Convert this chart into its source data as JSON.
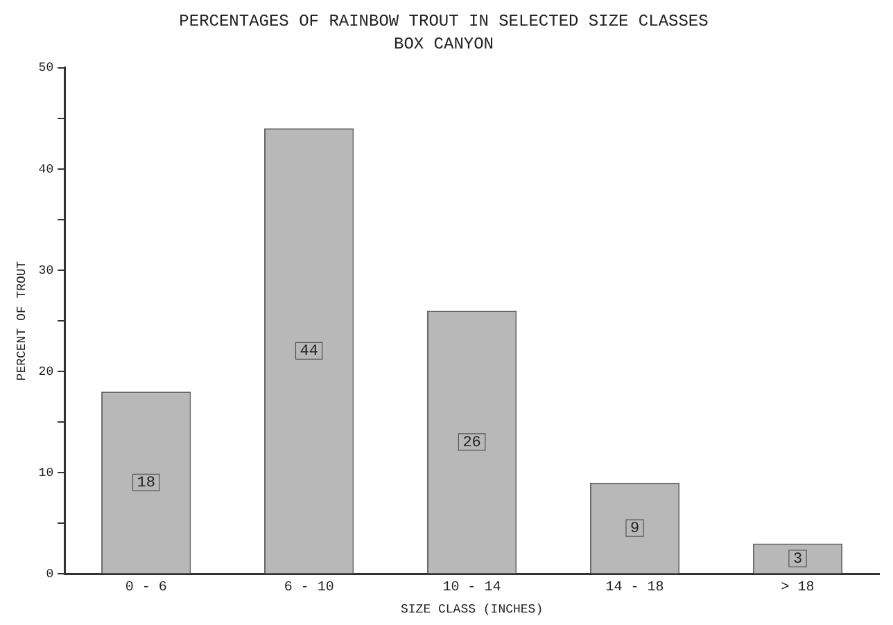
{
  "chart_data": {
    "type": "bar",
    "title": "PERCENTAGES OF RAINBOW TROUT IN SELECTED SIZE CLASSES",
    "subtitle": "BOX CANYON",
    "xlabel": "SIZE CLASS (INCHES)",
    "ylabel": "PERCENT OF TROUT",
    "categories": [
      "0 - 6",
      "6 - 10",
      "10 - 14",
      "14 - 18",
      "> 18"
    ],
    "values": [
      18,
      44,
      26,
      9,
      3
    ],
    "color": "#b8b8b8",
    "data_labels": true,
    "ylim": [
      0,
      50
    ],
    "yticks": [
      0,
      {
        "value": 5,
        "label": null
      },
      10,
      {
        "value": 15,
        "label": null
      },
      20,
      {
        "value": 25,
        "label": null
      },
      30,
      {
        "value": 35,
        "label": null
      },
      40,
      {
        "value": 45,
        "label": null
      },
      50
    ],
    "grid": false,
    "legend": false
  }
}
